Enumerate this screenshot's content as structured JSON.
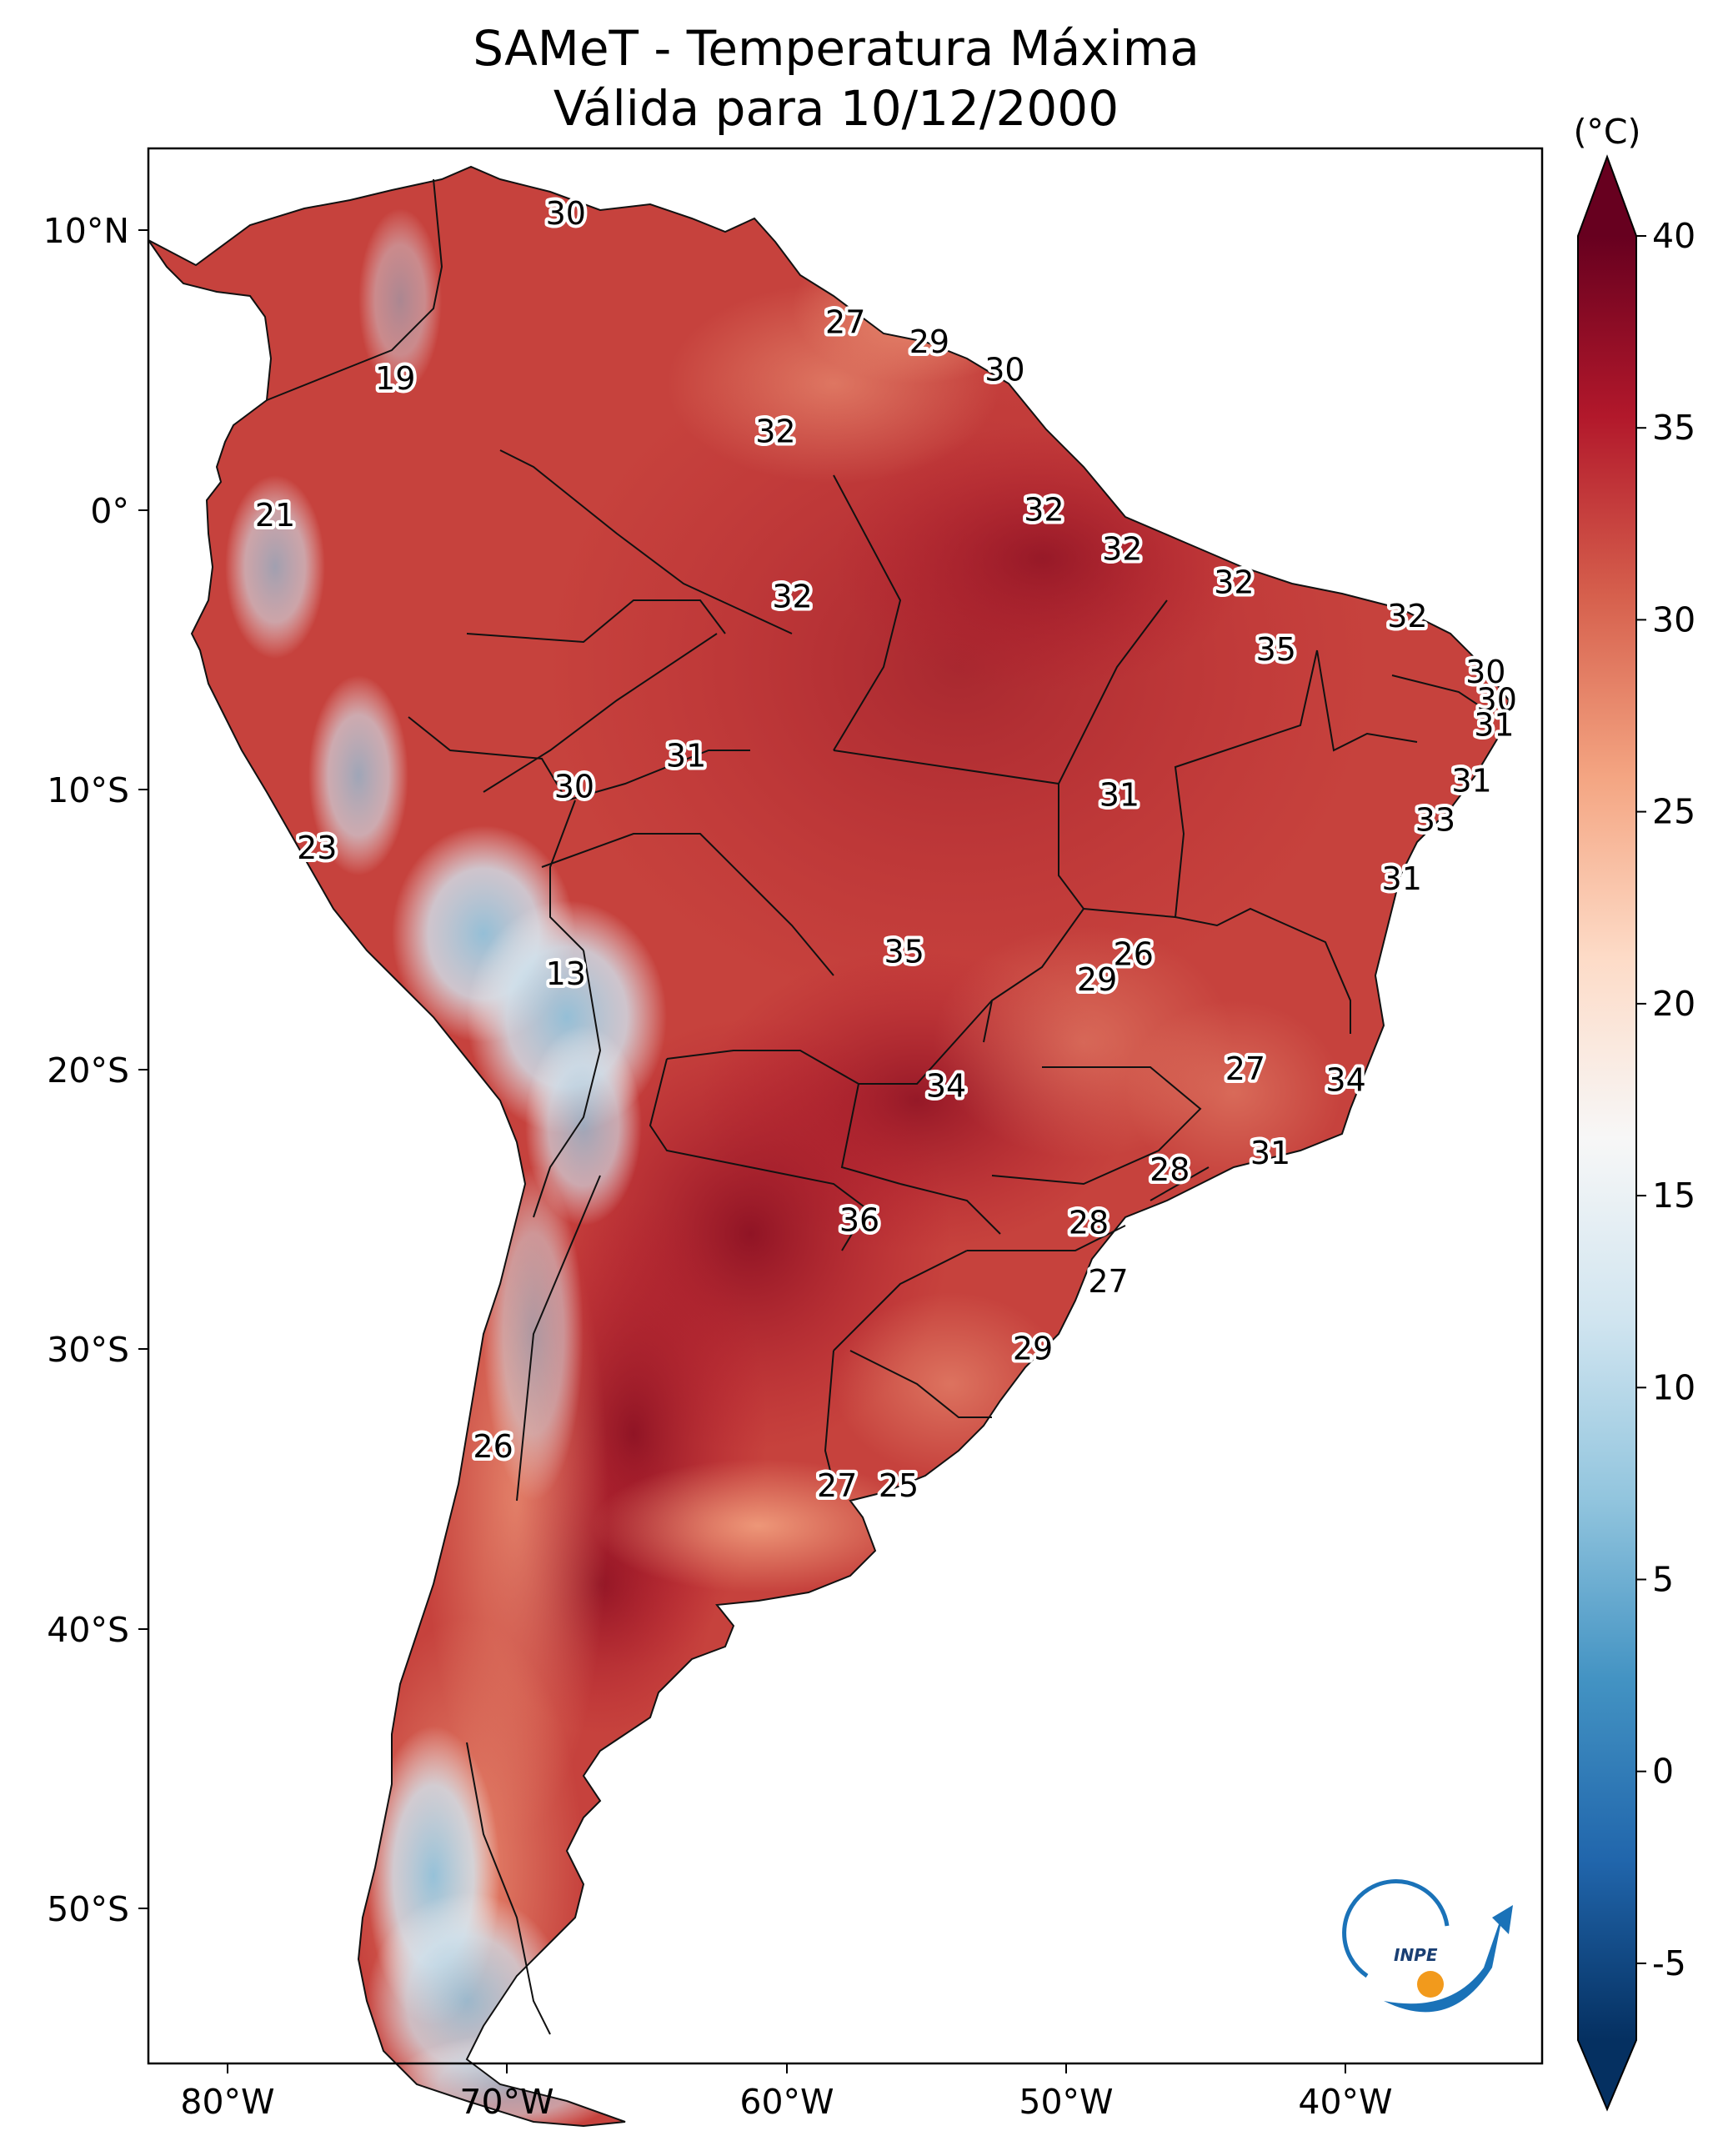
{
  "title": {
    "line1": "SAMeT - Temperatura Máxima",
    "line2": "Válida para 10/12/2000"
  },
  "colorbar": {
    "unit": "(°C)",
    "ticks": [
      "40",
      "35",
      "30",
      "25",
      "20",
      "15",
      "10",
      "5",
      "0",
      "-5"
    ],
    "colors": [
      "#053061",
      "#2166ac",
      "#4393c3",
      "#92c5de",
      "#d1e5f0",
      "#f7f7f7",
      "#fddbc7",
      "#f4a582",
      "#d6604d",
      "#b2182b",
      "#67001f"
    ]
  },
  "axes": {
    "longitudes": [
      "80°W",
      "70°W",
      "60°W",
      "50°W",
      "40°W"
    ],
    "latitudes": [
      "10°N",
      "0°",
      "10°S",
      "20°S",
      "30°S",
      "40°S",
      "50°S"
    ]
  },
  "contour_labels": [
    {
      "text": "30",
      "lon": -67.9,
      "lat": 10.6
    },
    {
      "text": "27",
      "lon": -57.9,
      "lat": 6.7
    },
    {
      "text": "29",
      "lon": -54.9,
      "lat": 6.0
    },
    {
      "text": "30",
      "lon": -52.2,
      "lat": 5.0
    },
    {
      "text": "19",
      "lon": -74.0,
      "lat": 4.7
    },
    {
      "text": "32",
      "lon": -60.4,
      "lat": 2.8
    },
    {
      "text": "21",
      "lon": -78.3,
      "lat": -0.2
    },
    {
      "text": "32",
      "lon": -50.8,
      "lat": 0.0
    },
    {
      "text": "32",
      "lon": -48.0,
      "lat": -1.4
    },
    {
      "text": "32",
      "lon": -44.0,
      "lat": -2.6
    },
    {
      "text": "32",
      "lon": -59.8,
      "lat": -3.1
    },
    {
      "text": "32",
      "lon": -37.8,
      "lat": -3.8
    },
    {
      "text": "35",
      "lon": -42.5,
      "lat": -5.0
    },
    {
      "text": "30",
      "lon": -35.0,
      "lat": -5.8
    },
    {
      "text": "30",
      "lon": -34.6,
      "lat": -6.8
    },
    {
      "text": "31",
      "lon": -34.7,
      "lat": -7.7
    },
    {
      "text": "31",
      "lon": -63.6,
      "lat": -8.8
    },
    {
      "text": "30",
      "lon": -67.6,
      "lat": -9.9
    },
    {
      "text": "31",
      "lon": -48.1,
      "lat": -10.2
    },
    {
      "text": "31",
      "lon": -35.5,
      "lat": -9.7
    },
    {
      "text": "33",
      "lon": -36.8,
      "lat": -11.1
    },
    {
      "text": "23",
      "lon": -76.8,
      "lat": -12.1
    },
    {
      "text": "31",
      "lon": -38.0,
      "lat": -13.2
    },
    {
      "text": "35",
      "lon": -55.8,
      "lat": -15.8
    },
    {
      "text": "26",
      "lon": -47.6,
      "lat": -15.9
    },
    {
      "text": "29",
      "lon": -48.9,
      "lat": -16.8
    },
    {
      "text": "13",
      "lon": -67.9,
      "lat": -16.6
    },
    {
      "text": "27",
      "lon": -43.6,
      "lat": -20.0
    },
    {
      "text": "34",
      "lon": -40.0,
      "lat": -20.4
    },
    {
      "text": "34",
      "lon": -54.3,
      "lat": -20.6
    },
    {
      "text": "31",
      "lon": -42.7,
      "lat": -23.0
    },
    {
      "text": "28",
      "lon": -46.3,
      "lat": -23.6
    },
    {
      "text": "36",
      "lon": -57.4,
      "lat": -25.4
    },
    {
      "text": "28",
      "lon": -49.2,
      "lat": -25.5
    },
    {
      "text": "27",
      "lon": -48.5,
      "lat": -27.6
    },
    {
      "text": "29",
      "lon": -51.2,
      "lat": -30.0
    },
    {
      "text": "26",
      "lon": -70.5,
      "lat": -33.5
    },
    {
      "text": "27",
      "lon": -58.2,
      "lat": -34.9
    },
    {
      "text": "25",
      "lon": -56.0,
      "lat": -34.9
    }
  ],
  "logo": {
    "text": "INPE"
  }
}
